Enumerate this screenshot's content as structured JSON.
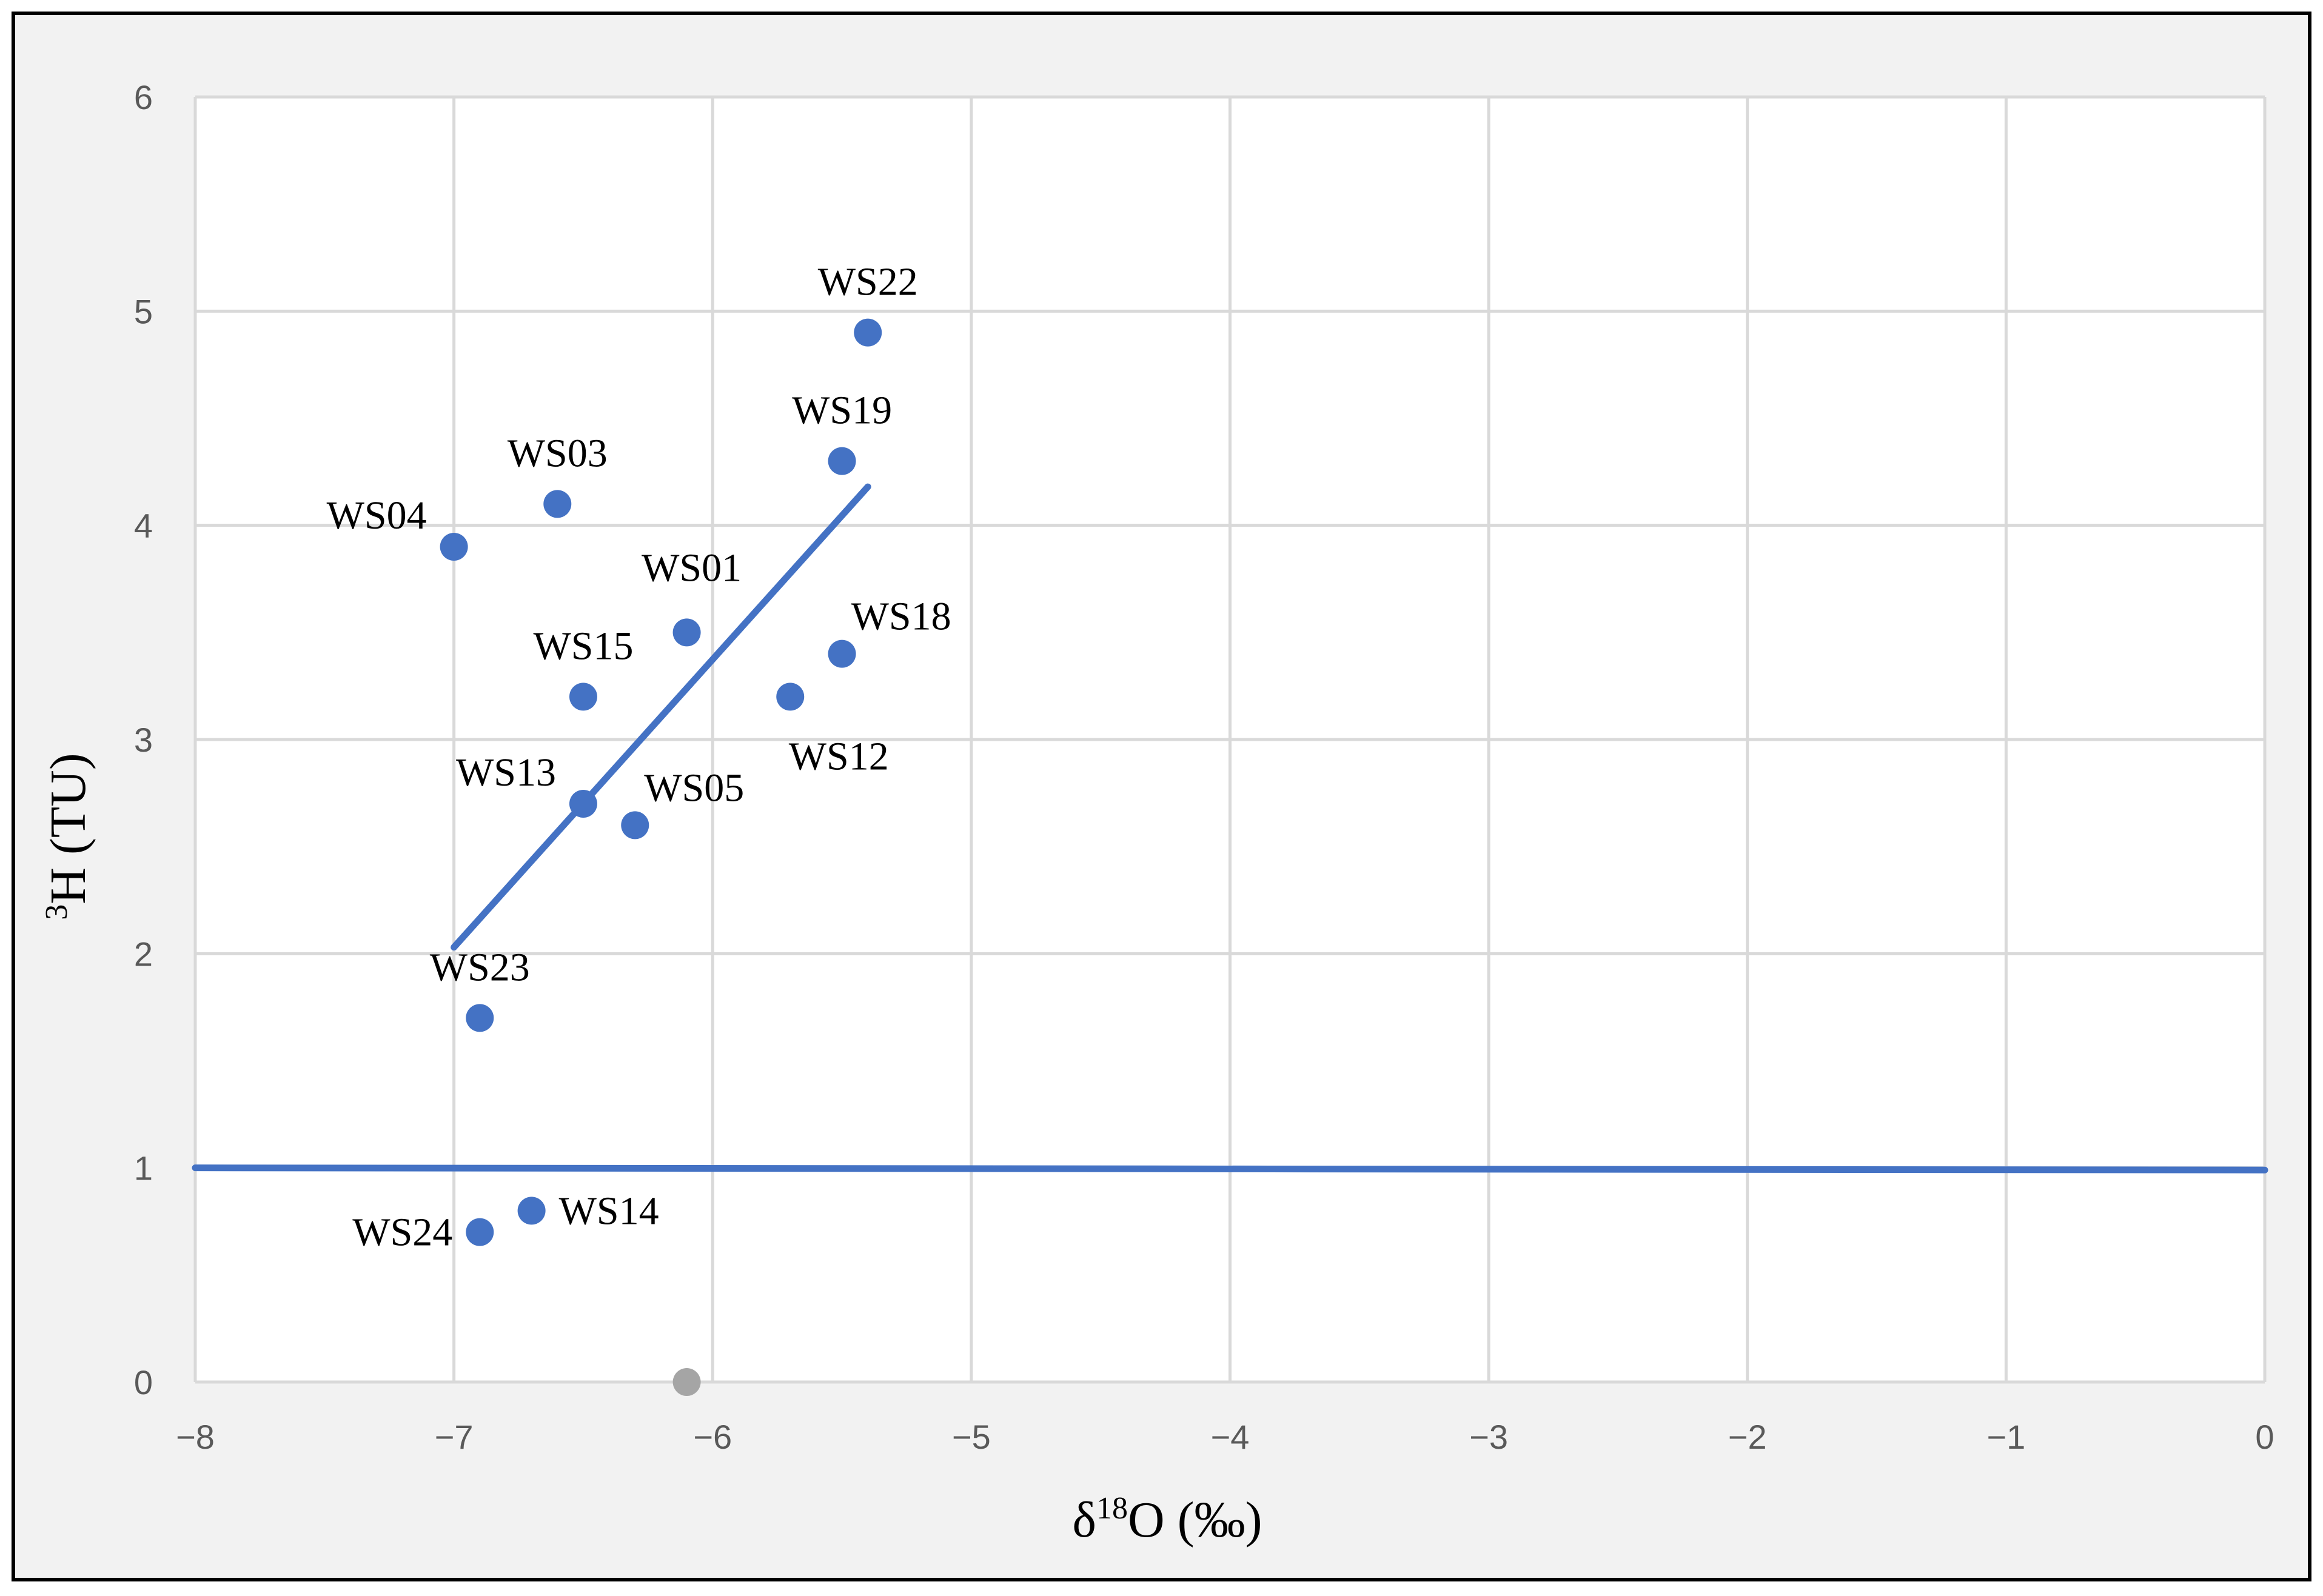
{
  "chart_data": {
    "type": "scatter",
    "title": "",
    "xlabel": {
      "main": "δ",
      "sup": "18",
      "rest": "O (‰)"
    },
    "ylabel": {
      "sup": "3",
      "rest": "H (TU)"
    },
    "xlim": [
      -8,
      0
    ],
    "ylim": [
      0,
      6
    ],
    "x_ticks": [
      -8,
      -7,
      -6,
      -5,
      -4,
      -3,
      -2,
      -1,
      0
    ],
    "y_ticks": [
      0,
      1,
      2,
      3,
      4,
      5,
      6
    ],
    "x_tick_labels": [
      "−8",
      "−7",
      "−6",
      "−5",
      "−4",
      "−3",
      "−2",
      "−1",
      "0"
    ],
    "y_tick_labels": [
      "0",
      "1",
      "2",
      "3",
      "4",
      "5",
      "6"
    ],
    "grid": true,
    "legend": "none",
    "colors": {
      "series": "#4472c4",
      "origin_point": "#a5a5a5",
      "grid": "#d9d9d9",
      "frame_background": "#f2f2f2"
    },
    "points": [
      {
        "label": "WS22",
        "x": -5.4,
        "y": 4.9,
        "label_pos": "above"
      },
      {
        "label": "WS19",
        "x": -5.5,
        "y": 4.3,
        "label_pos": "above"
      },
      {
        "label": "WS03",
        "x": -6.6,
        "y": 4.1,
        "label_pos": "above"
      },
      {
        "label": "WS04",
        "x": -7.0,
        "y": 3.9,
        "label_pos": "upper-left"
      },
      {
        "label": "WS01",
        "x": -6.1,
        "y": 3.5,
        "label_pos": "above-right"
      },
      {
        "label": "WS18",
        "x": -5.5,
        "y": 3.4,
        "label_pos": "upper-right"
      },
      {
        "label": "WS15",
        "x": -6.5,
        "y": 3.2,
        "label_pos": "above"
      },
      {
        "label": "WS12",
        "x": -5.7,
        "y": 3.2,
        "label_pos": "below-right"
      },
      {
        "label": "WS13",
        "x": -6.5,
        "y": 2.7,
        "label_pos": "upper-left"
      },
      {
        "label": "WS05",
        "x": -6.3,
        "y": 2.6,
        "label_pos": "upper-right"
      },
      {
        "label": "WS23",
        "x": -6.9,
        "y": 1.7,
        "label_pos": "above"
      },
      {
        "label": "WS14",
        "x": -6.7,
        "y": 0.8,
        "label_pos": "right"
      },
      {
        "label": "WS24",
        "x": -6.9,
        "y": 0.7,
        "label_pos": "left"
      }
    ],
    "extra_points": [
      {
        "x": -6.1,
        "y": 0,
        "color": "gray"
      }
    ],
    "trend_line": {
      "x": [
        -7.0,
        -5.4
      ],
      "y": [
        2.03,
        4.18
      ]
    },
    "reference_line": {
      "x": [
        -8,
        0
      ],
      "y": [
        1.0,
        0.99
      ]
    }
  }
}
